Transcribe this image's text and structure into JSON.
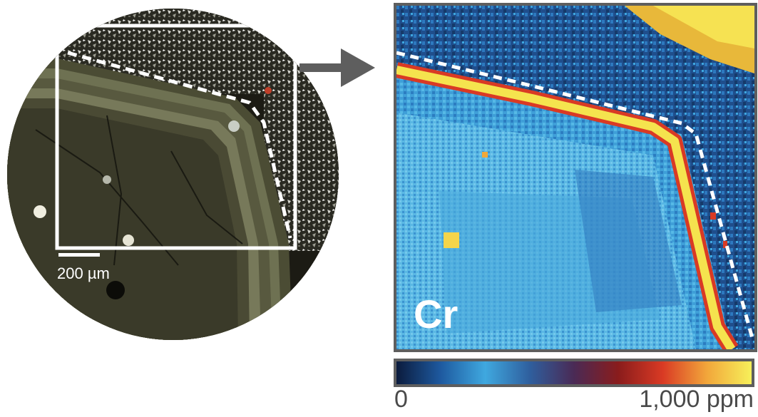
{
  "micrograph": {
    "scale_bar_label": "200 µm"
  },
  "element_map": {
    "element_label": "Cr"
  },
  "colorbar": {
    "min_label": "0",
    "max_label": "1,000 ppm",
    "colors": [
      "#0b1b3d",
      "#1e5aa0",
      "#3fa8df",
      "#2f5f9e",
      "#4a2a55",
      "#8a1c1c",
      "#d93a24",
      "#f2a73b",
      "#f6f05a"
    ]
  }
}
